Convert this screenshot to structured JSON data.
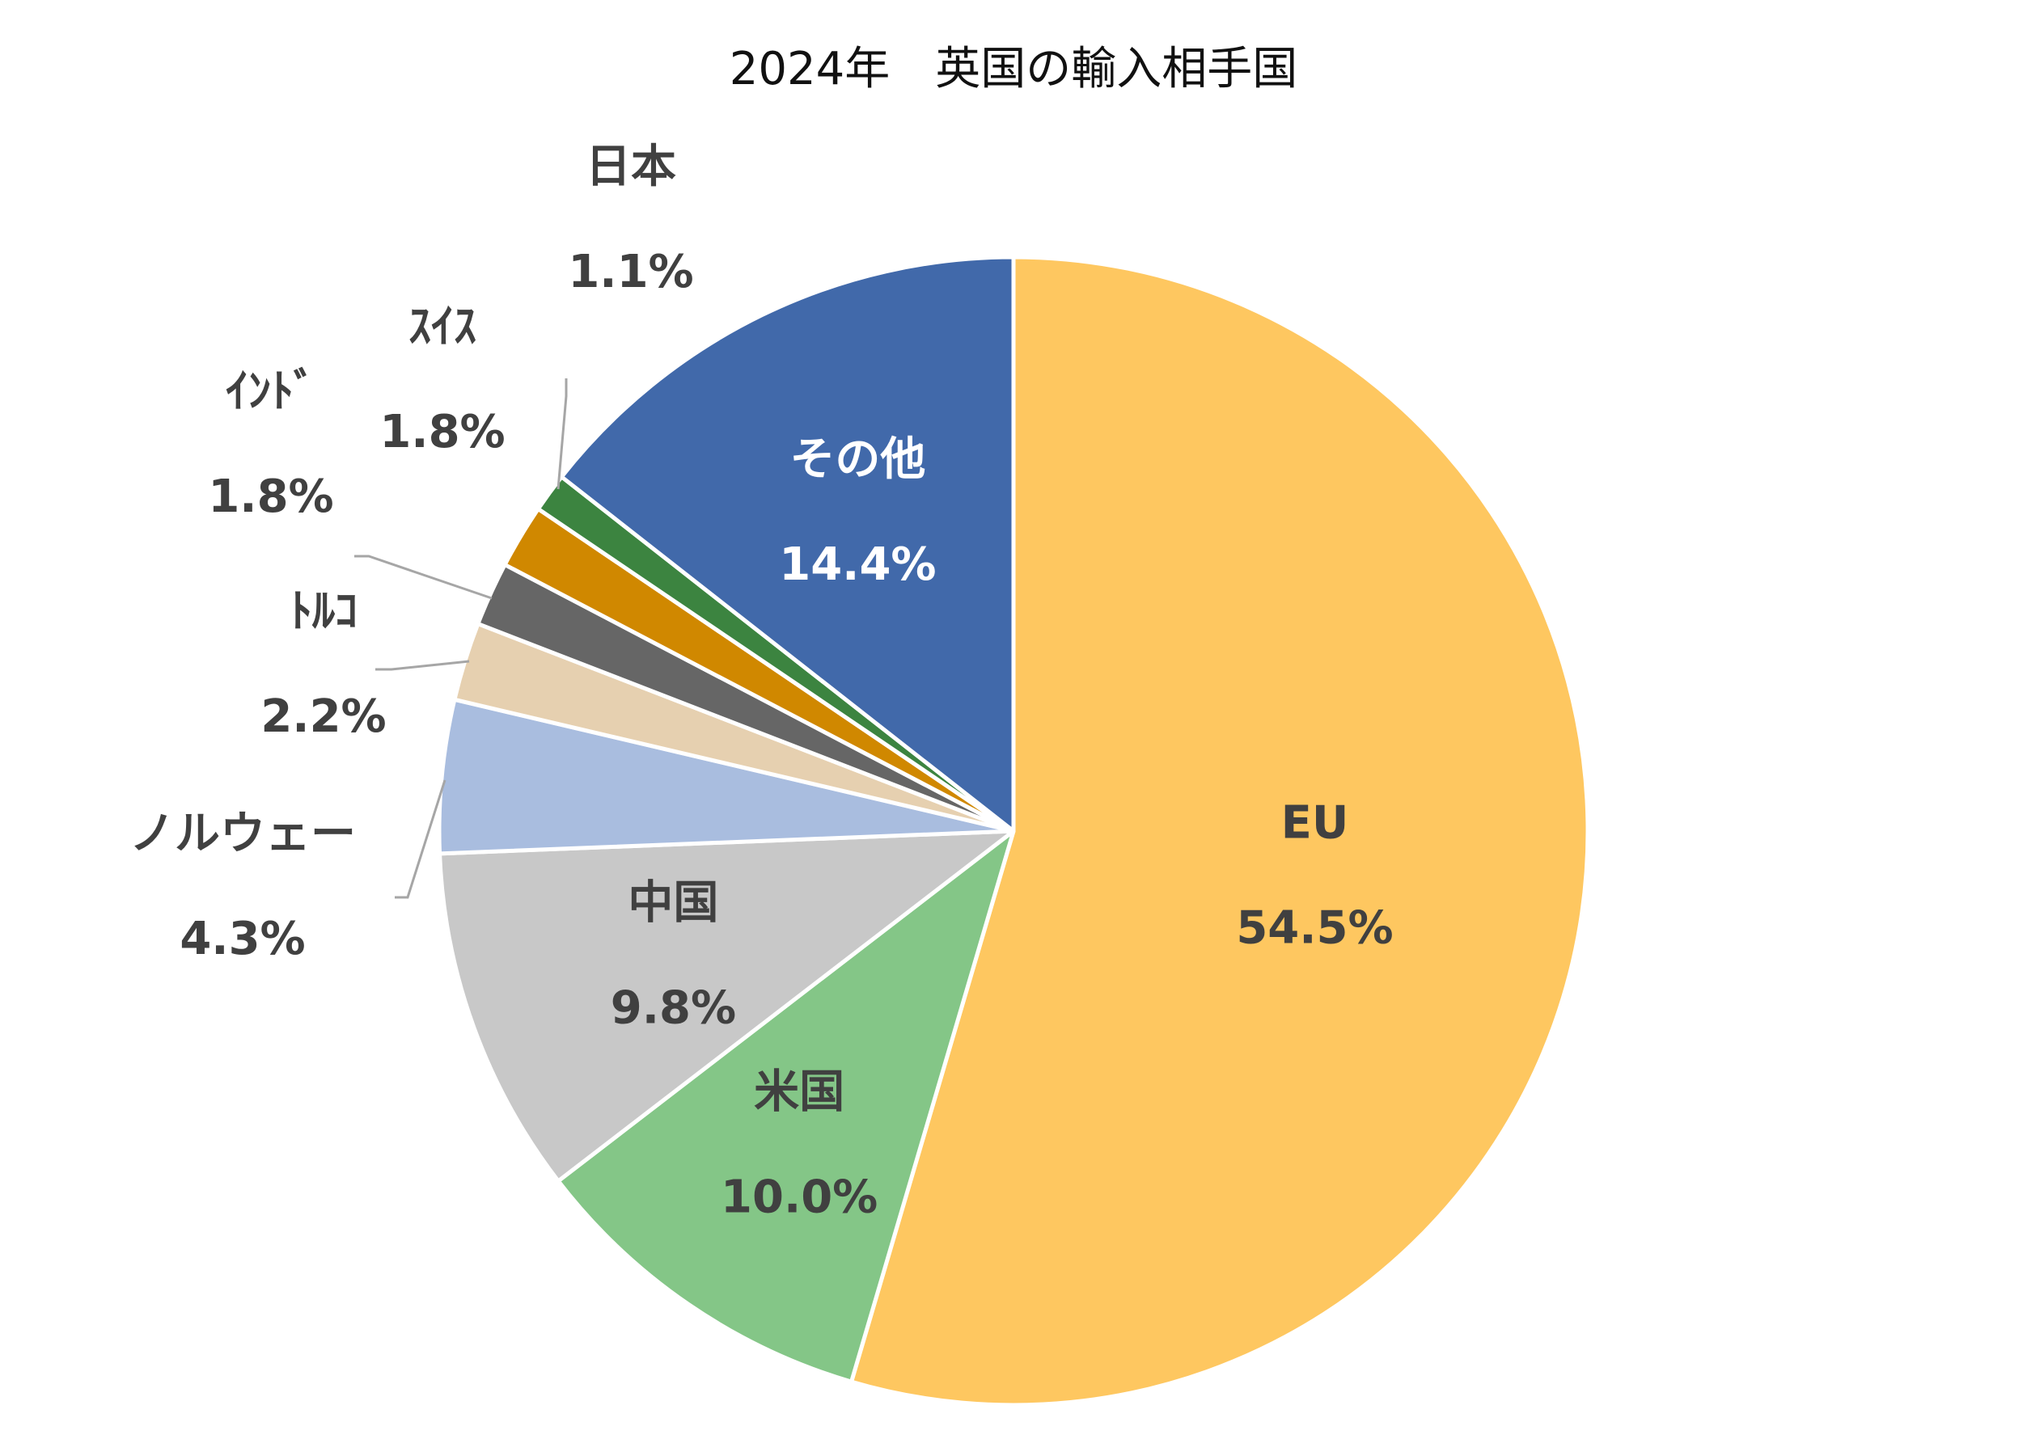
{
  "chart_data": {
    "type": "pie",
    "title": "2024年　英国の輸入相手国",
    "start_angle_deg": 0,
    "direction": "clockwise",
    "legend": "none",
    "slices": [
      {
        "label": "EU",
        "value": 54.5,
        "value_label": "54.5%",
        "color": "#FEC760",
        "text_color": "#404040"
      },
      {
        "label": "米国",
        "value": 10.0,
        "value_label": "10.0%",
        "color": "#84C687",
        "text_color": "#404040"
      },
      {
        "label": "中国",
        "value": 9.8,
        "value_label": "9.8%",
        "color": "#C8C8C8",
        "text_color": "#404040"
      },
      {
        "label": "ノルウェー",
        "value": 4.3,
        "value_label": "4.3%",
        "color": "#A9BDDF",
        "text_color": "#404040"
      },
      {
        "label": "ﾄﾙｺ",
        "value": 2.2,
        "value_label": "2.2%",
        "color": "#E6D0B0",
        "text_color": "#404040"
      },
      {
        "label": "ｲﾝﾄﾞ",
        "value": 1.8,
        "value_label": "1.8%",
        "color": "#666666",
        "text_color": "#404040"
      },
      {
        "label": "ｽｲｽ",
        "value": 1.8,
        "value_label": "1.8%",
        "color": "#D08800",
        "text_color": "#404040"
      },
      {
        "label": "日本",
        "value": 1.1,
        "value_label": "1.1%",
        "color": "#3C8440",
        "text_color": "#404040"
      },
      {
        "label": "その他",
        "value": 14.4,
        "value_label": "14.4%",
        "color": "#4169AA",
        "text_color": "#FFFFFF"
      }
    ]
  }
}
